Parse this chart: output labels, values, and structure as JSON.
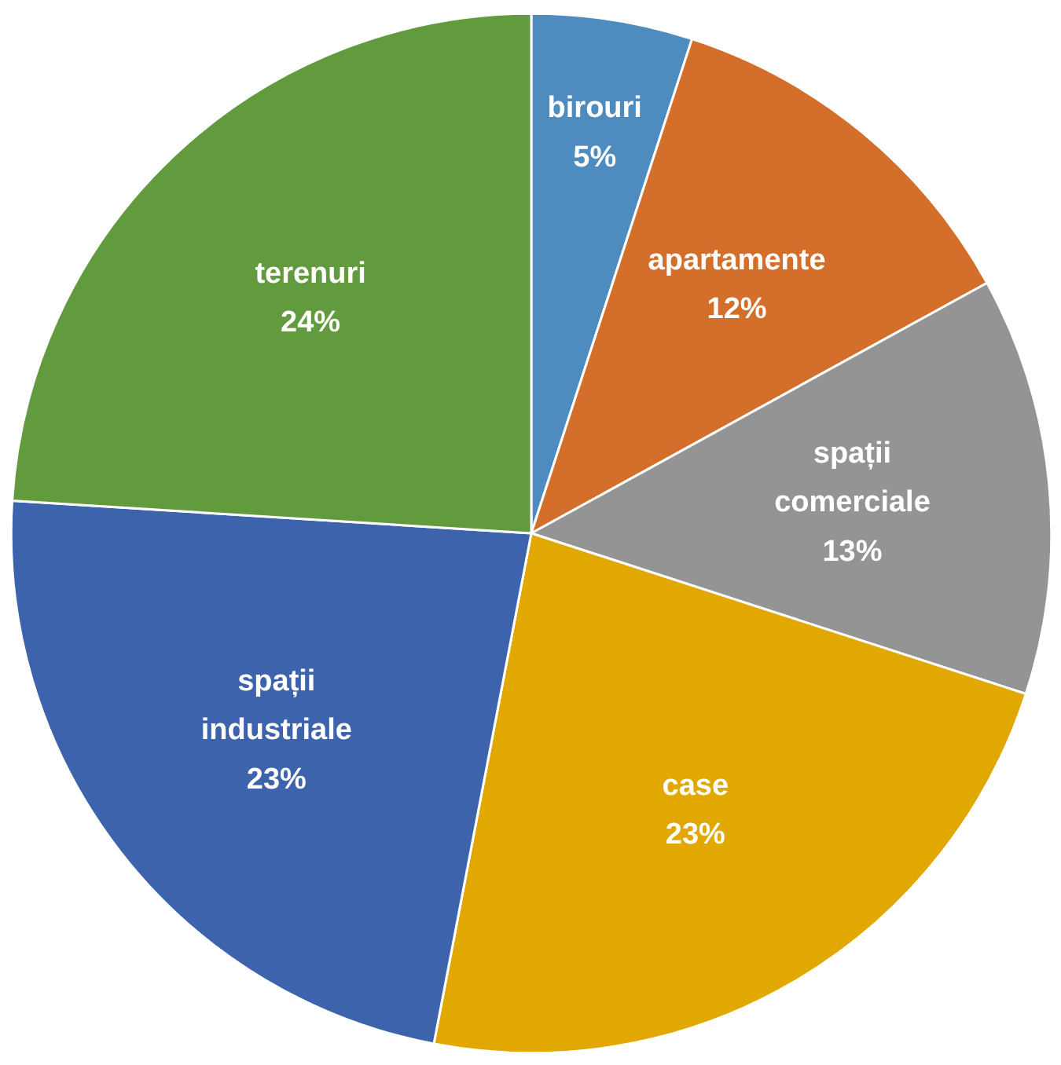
{
  "chart_data": {
    "type": "pie",
    "categories": [
      "birouri",
      "apartamente",
      "spații comerciale",
      "case",
      "spații industriale",
      "terenuri"
    ],
    "values": [
      5,
      12,
      13,
      23,
      23,
      24
    ],
    "value_labels": [
      "5%",
      "12%",
      "13%",
      "23%",
      "23%",
      "24%"
    ],
    "colors": [
      "#4e8bbf",
      "#d36f2b",
      "#949494",
      "#e0a800",
      "#3d63ad",
      "#629a3e"
    ]
  }
}
